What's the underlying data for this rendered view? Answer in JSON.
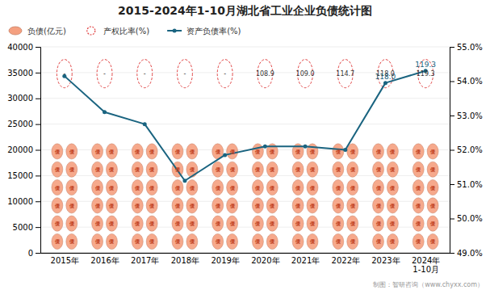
{
  "chart_data": {
    "type": "line",
    "title": "2015-2024年1-10月湖北省工业企业负债统计图",
    "categories": [
      "2015年",
      "2016年",
      "2017年",
      "2018年",
      "2019年",
      "2020年",
      "2021年",
      "2022年",
      "2023年",
      "2024年\n1-10月"
    ],
    "ylim": [
      0,
      40000
    ],
    "yticks": [
      0,
      5000,
      10000,
      15000,
      20000,
      25000,
      30000,
      35000,
      40000
    ],
    "y2lim": [
      49.0,
      55.0
    ],
    "y2ticks": [
      {
        "value": 49.0,
        "label": "49.0%"
      },
      {
        "value": 50.0,
        "label": "50.0%"
      },
      {
        "value": 51.0,
        "label": "51.0%"
      },
      {
        "value": 52.0,
        "label": "52.0%"
      },
      {
        "value": 53.0,
        "label": "53.0%"
      },
      {
        "value": 54.0,
        "label": "54.0%"
      },
      {
        "value": 55.0,
        "label": "55.0%"
      }
    ],
    "grid": true,
    "legend": "upper left",
    "series": [
      {
        "name": "负债(亿元)",
        "type": "pictogram",
        "color": "#F5A080",
        "marker": "债"
      },
      {
        "name": "产权比率(%)",
        "type": "badge",
        "color": "#E04040",
        "line_style": "dashed",
        "data_labels": true,
        "values": [
          null,
          null,
          null,
          null,
          null,
          108.9,
          109.0,
          114.7,
          118.0,
          119.3
        ],
        "value_labels": [
          "-",
          "-",
          "-",
          "-",
          "-",
          "108.9",
          "109.0",
          "114.7",
          "118.0",
          "119.3"
        ]
      },
      {
        "name": "资产负债率(%)",
        "type": "line",
        "axis": "y2",
        "color": "#1a6480",
        "marker": "circle",
        "values": [
          54.15,
          53.1,
          52.75,
          51.1,
          51.85,
          52.1,
          52.1,
          52.0,
          53.95,
          54.3
        ]
      }
    ],
    "annotations": [
      {
        "text": "118.0",
        "x": "2023年",
        "series": "资产负债率(%)"
      },
      {
        "text": "119.3",
        "x": "2024年\n1-10月",
        "series": "资产负债率(%)"
      },
      {
        "text": "制图：智研咨询（www.chyxx.com）"
      }
    ]
  }
}
